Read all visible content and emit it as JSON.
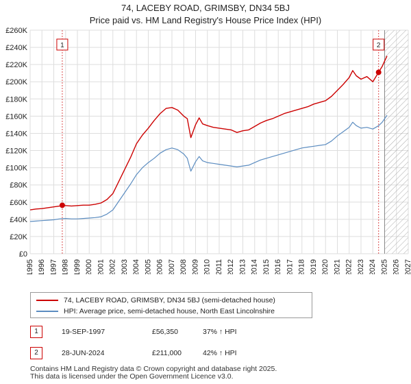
{
  "title": "74, LACEBY ROAD, GRIMSBY, DN34 5BJ",
  "subtitle": "Price paid vs. HM Land Registry's House Price Index (HPI)",
  "colors": {
    "property_line": "#cc0000",
    "hpi_line": "#5b8cc0",
    "marker": "#cc0000",
    "vline": "#cc0000",
    "grid": "#dddddd",
    "hatch": "#999999"
  },
  "chart_data": {
    "type": "line",
    "title": "74, LACEBY ROAD, GRIMSBY, DN34 5BJ",
    "subtitle": "Price paid vs. HM Land Registry's House Price Index (HPI)",
    "xlabel": "",
    "ylabel": "",
    "xlim": [
      1995,
      2027
    ],
    "ylim": [
      0,
      260000
    ],
    "x_ticks": [
      1995,
      1996,
      1997,
      1998,
      1999,
      2000,
      2001,
      2002,
      2003,
      2004,
      2005,
      2006,
      2007,
      2008,
      2009,
      2010,
      2011,
      2012,
      2013,
      2014,
      2015,
      2016,
      2017,
      2018,
      2019,
      2020,
      2021,
      2022,
      2023,
      2024,
      2025,
      2026,
      2027
    ],
    "y_ticks": [
      0,
      20000,
      40000,
      60000,
      80000,
      100000,
      120000,
      140000,
      160000,
      180000,
      200000,
      220000,
      240000,
      260000
    ],
    "y_tick_labels": [
      "£0",
      "£20K",
      "£40K",
      "£60K",
      "£80K",
      "£100K",
      "£120K",
      "£140K",
      "£160K",
      "£180K",
      "£200K",
      "£220K",
      "£240K",
      "£260K"
    ],
    "grid": true,
    "forecast_start": 2025.0,
    "series": [
      {
        "name": "74, LACEBY ROAD, GRIMSBY, DN34 5BJ (semi-detached house)",
        "x": [
          1995.0,
          1995.5,
          1996.0,
          1996.5,
          1997.0,
          1997.5,
          1997.72,
          1998.0,
          1998.5,
          1999.0,
          1999.5,
          2000.0,
          2000.5,
          2001.0,
          2001.5,
          2002.0,
          2002.5,
          2003.0,
          2003.5,
          2004.0,
          2004.5,
          2005.0,
          2005.5,
          2006.0,
          2006.5,
          2007.0,
          2007.5,
          2008.0,
          2008.3,
          2008.6,
          2009.0,
          2009.3,
          2009.6,
          2010.0,
          2010.5,
          2011.0,
          2011.5,
          2012.0,
          2012.5,
          2013.0,
          2013.5,
          2014.0,
          2014.5,
          2015.0,
          2015.5,
          2016.0,
          2016.5,
          2017.0,
          2017.5,
          2018.0,
          2018.5,
          2019.0,
          2019.5,
          2020.0,
          2020.5,
          2021.0,
          2021.5,
          2022.0,
          2022.3,
          2022.6,
          2023.0,
          2023.5,
          2024.0,
          2024.49,
          2024.8,
          2025.0,
          2025.2
        ],
        "values": [
          51000,
          52000,
          52500,
          53500,
          54500,
          55500,
          56350,
          56000,
          55500,
          56000,
          56500,
          56500,
          57500,
          59000,
          63000,
          70000,
          84000,
          98000,
          112000,
          128000,
          138000,
          146000,
          155000,
          163000,
          169000,
          170000,
          167000,
          160000,
          157000,
          135000,
          150000,
          158000,
          151000,
          149000,
          147000,
          146000,
          145000,
          144000,
          141000,
          143000,
          144000,
          148000,
          152000,
          155000,
          157000,
          160000,
          163000,
          165000,
          167000,
          169000,
          171000,
          174000,
          176000,
          178000,
          183000,
          190000,
          197000,
          205000,
          213000,
          207000,
          203000,
          206000,
          200000,
          211000,
          218000,
          224000,
          230000
        ]
      },
      {
        "name": "HPI: Average price, semi-detached house, North East Lincolnshire",
        "x": [
          1995.0,
          1995.5,
          1996.0,
          1996.5,
          1997.0,
          1997.5,
          1998.0,
          1998.5,
          1999.0,
          1999.5,
          2000.0,
          2000.5,
          2001.0,
          2001.5,
          2002.0,
          2002.5,
          2003.0,
          2003.5,
          2004.0,
          2004.5,
          2005.0,
          2005.5,
          2006.0,
          2006.5,
          2007.0,
          2007.5,
          2008.0,
          2008.3,
          2008.6,
          2009.0,
          2009.3,
          2009.6,
          2010.0,
          2010.5,
          2011.0,
          2011.5,
          2012.0,
          2012.5,
          2013.0,
          2013.5,
          2014.0,
          2014.5,
          2015.0,
          2015.5,
          2016.0,
          2016.5,
          2017.0,
          2017.5,
          2018.0,
          2018.5,
          2019.0,
          2019.5,
          2020.0,
          2020.5,
          2021.0,
          2021.5,
          2022.0,
          2022.3,
          2022.6,
          2023.0,
          2023.5,
          2024.0,
          2024.5,
          2024.8,
          2025.0,
          2025.2
        ],
        "values": [
          37500,
          38000,
          38500,
          39000,
          39500,
          40500,
          41000,
          40500,
          40500,
          41000,
          41500,
          42000,
          43000,
          46000,
          51000,
          61000,
          71000,
          81000,
          92000,
          100000,
          106000,
          111000,
          117000,
          121000,
          123000,
          121000,
          116000,
          111000,
          96000,
          107000,
          113000,
          108000,
          106000,
          105000,
          104000,
          103000,
          102000,
          101000,
          102000,
          103000,
          106000,
          109000,
          111000,
          113000,
          115000,
          117000,
          119000,
          121000,
          123000,
          124000,
          125000,
          126000,
          127000,
          131000,
          137000,
          142000,
          147000,
          153000,
          149000,
          146000,
          147000,
          145000,
          149000,
          153000,
          157000,
          161000
        ]
      }
    ],
    "annotations": [
      {
        "label": "1",
        "x": 1997.72,
        "y": 56350
      },
      {
        "label": "2",
        "x": 2024.49,
        "y": 211000
      }
    ]
  },
  "legend": {
    "property_label": "74, LACEBY ROAD, GRIMSBY, DN34 5BJ (semi-detached house)",
    "hpi_label": "HPI: Average price, semi-detached house, North East Lincolnshire"
  },
  "sales": [
    {
      "num": "1",
      "date": "19-SEP-1997",
      "price": "£56,350",
      "hpi": "37% ↑ HPI"
    },
    {
      "num": "2",
      "date": "28-JUN-2024",
      "price": "£211,000",
      "hpi": "42% ↑ HPI"
    }
  ],
  "footer": {
    "line1": "Contains HM Land Registry data © Crown copyright and database right 2025.",
    "line2": "This data is licensed under the Open Government Licence v3.0."
  }
}
